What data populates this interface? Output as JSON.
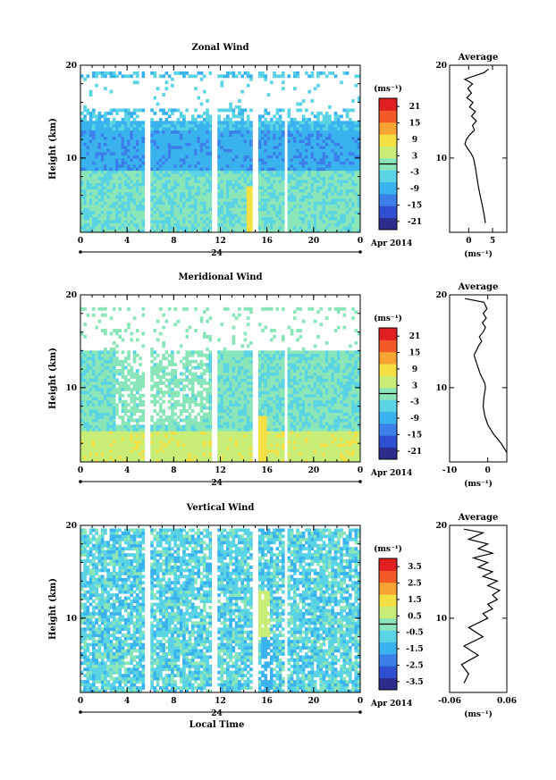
{
  "chart_data": [
    {
      "type": "heatmap",
      "title": "Zonal Wind",
      "ylabel": "Height (km)",
      "ylim": [
        2,
        20
      ],
      "yticks": [
        "10",
        "20"
      ],
      "xticks": [
        "0",
        "4",
        "8",
        "12",
        "16",
        "20",
        "0"
      ],
      "date_day": "24",
      "date_label": "Apr 2014",
      "colorbar": {
        "unit": "(ms⁻¹)",
        "ticks": [
          "21",
          "15",
          "9",
          "3",
          "-3",
          "-9",
          "-15",
          "-21"
        ],
        "range": [
          -24,
          24
        ]
      },
      "gaps_hours": [
        [
          5.6,
          6.0
        ],
        [
          11.2,
          11.8
        ],
        [
          14.8,
          15.2
        ],
        [
          17.4,
          17.8
        ]
      ],
      "profile": {
        "title": "Average",
        "xlim": [
          -4,
          8
        ],
        "xticks": [
          "0",
          "5"
        ],
        "xlabel": "(ms⁻¹)",
        "yticks": [
          "10",
          "20"
        ],
        "ylim": [
          2,
          20
        ],
        "x": [
          3.5,
          3.2,
          2.8,
          2.4,
          2.0,
          1.7,
          1.4,
          1.0,
          0.5,
          -0.2,
          -0.8,
          -0.5,
          0.2,
          1.2,
          0.8,
          1.6,
          0.6,
          1.4,
          0.2,
          0.9,
          -0.4,
          0.6,
          -0.2,
          0.8,
          -0.8,
          3.2,
          4.2
        ],
        "y": [
          3,
          4,
          5,
          6,
          7,
          8,
          9,
          10,
          10.5,
          11,
          11.5,
          12,
          12.5,
          13,
          13.5,
          14,
          14.5,
          15,
          15.5,
          16,
          16.5,
          17,
          17.5,
          18,
          18.5,
          19.2,
          19.6
        ]
      }
    },
    {
      "type": "heatmap",
      "title": "Meridional Wind",
      "ylabel": "Height (km)",
      "ylim": [
        2,
        20
      ],
      "yticks": [
        "10",
        "20"
      ],
      "xticks": [
        "0",
        "4",
        "8",
        "12",
        "16",
        "20",
        "0"
      ],
      "date_day": "24",
      "date_label": "Apr 2014",
      "colorbar": {
        "unit": "(ms⁻¹)",
        "ticks": [
          "21",
          "15",
          "9",
          "3",
          "-3",
          "-9",
          "-15",
          "-21"
        ],
        "range": [
          -24,
          24
        ]
      },
      "gaps_hours": [
        [
          5.6,
          6.0
        ],
        [
          11.2,
          11.8
        ],
        [
          14.8,
          15.2
        ],
        [
          17.4,
          17.8
        ]
      ],
      "profile": {
        "title": "Average",
        "xlim": [
          -10,
          5
        ],
        "xticks": [
          "-10",
          "0"
        ],
        "xlabel": "(ms⁻¹)",
        "yticks": [
          "10",
          "20"
        ],
        "ylim": [
          2,
          20
        ],
        "x": [
          5.0,
          3.5,
          1.5,
          0.0,
          -0.8,
          -1.2,
          -1.0,
          -0.6,
          -0.8,
          -1.4,
          -2.0,
          -2.4,
          -2.8,
          -3.2,
          -3.6,
          -3.0,
          -2.4,
          -1.6,
          -2.2,
          -1.2,
          -0.6,
          -1.4,
          -0.4,
          -1.2,
          -0.2,
          -1.0,
          -6.0
        ],
        "y": [
          3,
          4,
          5,
          6,
          7,
          8,
          9,
          10,
          10.5,
          11,
          11.5,
          12,
          12.5,
          13,
          13.5,
          14,
          14.5,
          15,
          15.5,
          16,
          16.5,
          17,
          17.5,
          18,
          18.5,
          19.2,
          19.6
        ]
      }
    },
    {
      "type": "heatmap",
      "title": "Vertical Wind",
      "ylabel": "Height (km)",
      "xlabel": "Local Time",
      "ylim": [
        2,
        20
      ],
      "yticks": [
        "10",
        "20"
      ],
      "xticks": [
        "0",
        "4",
        "8",
        "12",
        "16",
        "20",
        "0"
      ],
      "date_day": "24",
      "date_label": "Apr 2014",
      "colorbar": {
        "unit": "(ms⁻¹)",
        "ticks": [
          "3.5",
          "2.5",
          "1.5",
          "0.5",
          "-0.5",
          "-1.5",
          "-2.5",
          "-3.5"
        ],
        "range": [
          -4,
          4
        ]
      },
      "gaps_hours": [
        [
          5.6,
          6.0
        ],
        [
          11.2,
          11.8
        ],
        [
          14.8,
          15.2
        ],
        [
          17.4,
          17.8
        ]
      ],
      "profile": {
        "title": "Average",
        "xlim": [
          -0.06,
          0.06
        ],
        "xticks": [
          "-0.06",
          "0.06"
        ],
        "xlabel": "(ms⁻¹)",
        "yticks": [
          "10",
          "20"
        ],
        "ylim": [
          2,
          20
        ],
        "x": [
          -0.03,
          -0.02,
          -0.035,
          0.0,
          -0.03,
          0.01,
          -0.02,
          0.02,
          0.01,
          0.03,
          0.02,
          0.04,
          0.03,
          0.045,
          0.02,
          0.04,
          0.01,
          0.03,
          0.0,
          0.02,
          -0.01,
          0.03,
          0.0,
          0.02,
          -0.02,
          0.01,
          -0.03
        ],
        "y": [
          3,
          4,
          5,
          6,
          7,
          8,
          9,
          10,
          10.5,
          11,
          11.5,
          12,
          12.5,
          13,
          13.5,
          14,
          14.5,
          15,
          15.5,
          16,
          16.5,
          17,
          17.5,
          18,
          18.5,
          19.2,
          19.6
        ]
      }
    }
  ],
  "colors": {
    "scale": [
      "#2c2c8c",
      "#2f50d0",
      "#3a80e8",
      "#3ab2ee",
      "#5ad4e4",
      "#8ae6b8",
      "#c8ee78",
      "#f4e044",
      "#f8a432",
      "#f25a28",
      "#e02020"
    ]
  }
}
